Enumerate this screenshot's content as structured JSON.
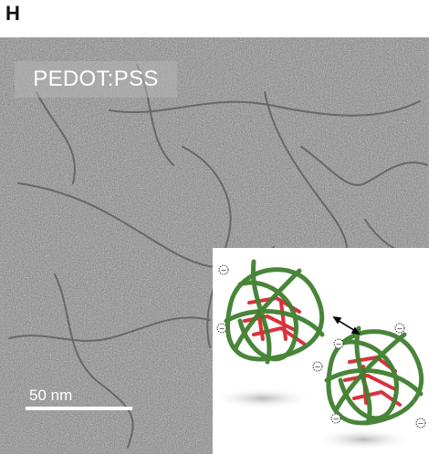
{
  "figure": {
    "panel_letter": "H",
    "sample_label": "PEDOT:PSS",
    "scale_bar_label": "50 nm",
    "inset": {
      "description_icon": "pedot-pss-particle-schematic",
      "colors": {
        "psss_shell": "#3f7f2f",
        "pedot_core": "#d9323c",
        "background": "#ffffff"
      }
    }
  }
}
